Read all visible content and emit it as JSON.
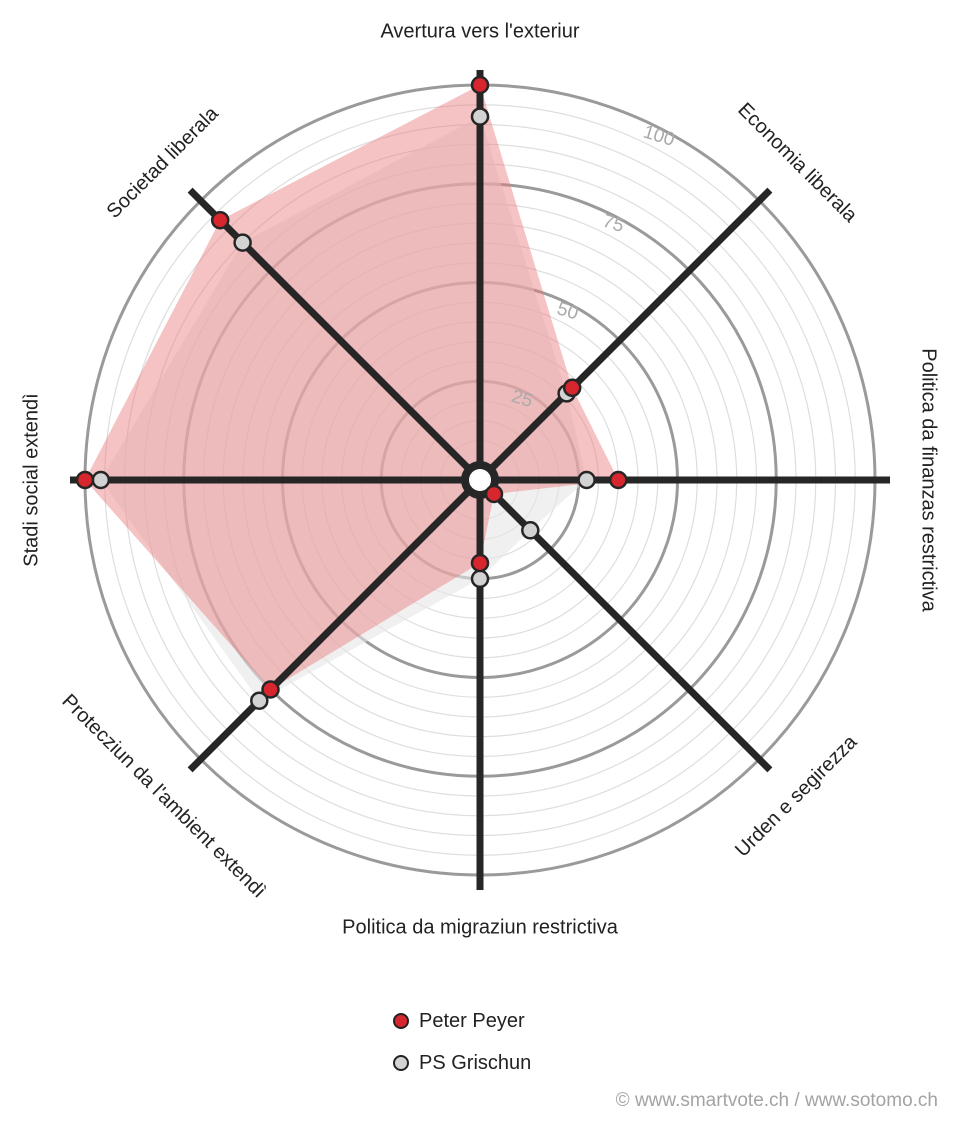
{
  "chart_data": {
    "type": "radar",
    "axes": [
      "Avertura vers l'exteriur",
      "Economia liberala",
      "Politica da finanzas restrictiva",
      "Urden e segirezza",
      "Politica da migraziun restrictiva",
      "Protecziun da l'ambient extendì",
      "Stadi social extendì",
      "Societad liberala"
    ],
    "ticks": [
      25,
      50,
      75,
      100
    ],
    "range": [
      0,
      100
    ],
    "series": [
      {
        "name": "Peter Peyer",
        "color": "#d7262e",
        "fill": "#e97a7a",
        "values": [
          100,
          33,
          35,
          5,
          21,
          75,
          100,
          93
        ]
      },
      {
        "name": "PS Grischun",
        "color": "#d3d3d3",
        "fill": "#e6e6e6",
        "values": [
          92,
          31,
          27,
          18,
          25,
          79,
          96,
          85
        ]
      }
    ]
  },
  "legend": {
    "items": [
      "Peter Peyer",
      "PS Grischun"
    ]
  },
  "credit": "© www.smartvote.ch / www.sotomo.ch"
}
